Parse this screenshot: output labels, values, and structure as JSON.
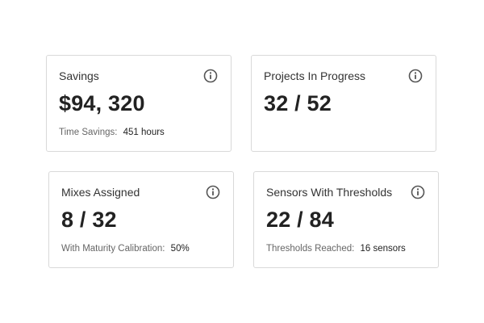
{
  "cards": [
    {
      "title": "Savings",
      "value": "$94, 320",
      "footer_label": "Time Savings:",
      "footer_value": "451 hours",
      "icon": "info-icon"
    },
    {
      "title": "Projects In Progress",
      "value": "32 / 52",
      "icon": "info-icon"
    },
    {
      "title": "Mixes Assigned",
      "value": "8 / 32",
      "footer_label": "With Maturity Calibration:",
      "footer_value": "50%",
      "icon": "info-icon"
    },
    {
      "title": "Sensors With Thresholds",
      "value": "22 / 84",
      "footer_label": "Thresholds Reached:",
      "footer_value": "16 sensors",
      "icon": "info-icon"
    }
  ],
  "colors": {
    "border": "#d9d9d9",
    "icon": "#555555",
    "label": "#666666",
    "value": "#222222"
  }
}
